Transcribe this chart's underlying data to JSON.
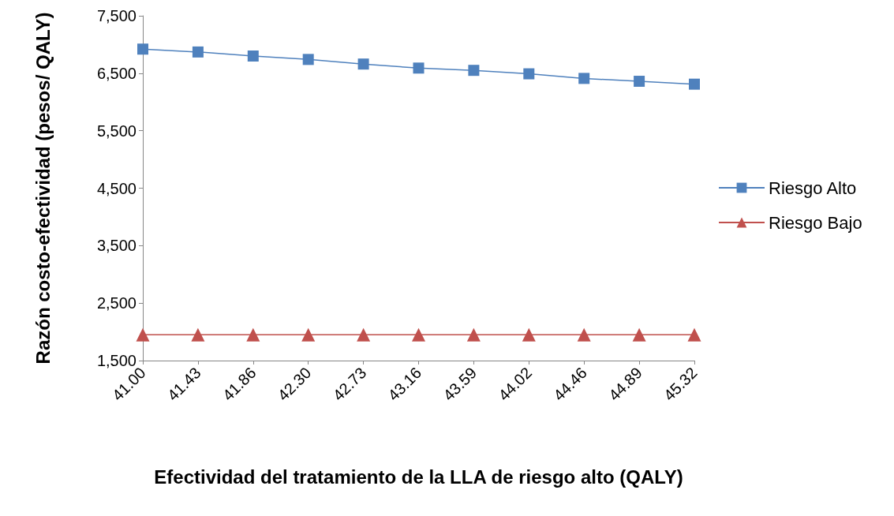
{
  "chart_data": {
    "type": "line",
    "xlabel": "Efectividad del tratamiento de la LLA de riesgo alto (QALY)",
    "ylabel": "Razón costo-efectividad (pesos/ QALY)",
    "categories": [
      "41.00",
      "41.43",
      "41.86",
      "42.30",
      "42.73",
      "43.16",
      "43.59",
      "44.02",
      "44.46",
      "44.89",
      "45.32"
    ],
    "series": [
      {
        "name": "Riesgo Alto",
        "color": "#4f81bd",
        "marker": "square",
        "values": [
          6920,
          6870,
          6800,
          6740,
          6660,
          6590,
          6550,
          6490,
          6410,
          6360,
          6310
        ]
      },
      {
        "name": "Riesgo Bajo",
        "color": "#c0504d",
        "marker": "triangle",
        "values": [
          1950,
          1950,
          1950,
          1950,
          1950,
          1950,
          1950,
          1950,
          1950,
          1950,
          1950
        ]
      }
    ],
    "ylim": [
      1500,
      7500
    ],
    "yticks": [
      {
        "value": 1500,
        "label": "1,500"
      },
      {
        "value": 2500,
        "label": "2,500"
      },
      {
        "value": 3500,
        "label": "3,500"
      },
      {
        "value": 4500,
        "label": "4,500"
      },
      {
        "value": 5500,
        "label": "5,500"
      },
      {
        "value": 6500,
        "label": "6,500"
      },
      {
        "value": 7500,
        "label": "7,500"
      }
    ],
    "grid": false,
    "legend": "right",
    "line_style": "solid"
  }
}
